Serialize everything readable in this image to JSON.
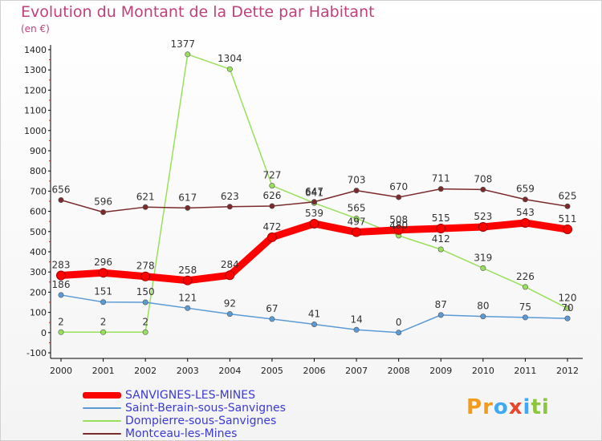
{
  "chart_data": {
    "type": "line",
    "title": "Evolution du Montant de la Dette par Habitant",
    "unit_label": "(en €)",
    "x": [
      "2000",
      "2001",
      "2002",
      "2003",
      "2004",
      "2005",
      "2006",
      "2007",
      "2008",
      "2009",
      "2010",
      "2011",
      "2012"
    ],
    "ylim": [
      -100,
      1400
    ],
    "yticks": [
      -100,
      0,
      100,
      200,
      300,
      400,
      500,
      600,
      700,
      800,
      900,
      1000,
      1100,
      1200,
      1300,
      1400
    ],
    "grid": false,
    "series": [
      {
        "name": "SANVIGNES-LES-MINES",
        "color": "#ff0000",
        "values": [
          283,
          296,
          278,
          258,
          284,
          472,
          539,
          497,
          508,
          515,
          523,
          543,
          511
        ]
      },
      {
        "name": "Saint-Berain-sous-Sanvignes",
        "color": "#5b9bd5",
        "values": [
          186,
          151,
          150,
          121,
          92,
          67,
          41,
          14,
          0,
          87,
          80,
          75,
          70
        ]
      },
      {
        "name": "Dompierre-sous-Sanvignes",
        "color": "#99e05a",
        "values": [
          2,
          2,
          2,
          1377,
          1304,
          727,
          641,
          565,
          480,
          412,
          319,
          226,
          120
        ]
      },
      {
        "name": "Montceau-les-Mines",
        "color": "#7a2a2a",
        "values": [
          656,
          596,
          621,
          617,
          623,
          626,
          647,
          703,
          670,
          711,
          708,
          659,
          625
        ]
      }
    ]
  },
  "logo": {
    "text": "Proxiti",
    "letters": [
      {
        "ch": "P",
        "color": "#f29b1d"
      },
      {
        "ch": "r",
        "color": "#f29b1d"
      },
      {
        "ch": "o",
        "color": "#3fa9f5"
      },
      {
        "ch": "x",
        "color": "#e8452c"
      },
      {
        "ch": "i",
        "color": "#3fa9f5"
      },
      {
        "ch": "t",
        "color": "#8cc63f"
      },
      {
        "ch": "i",
        "color": "#8cc63f"
      }
    ]
  }
}
